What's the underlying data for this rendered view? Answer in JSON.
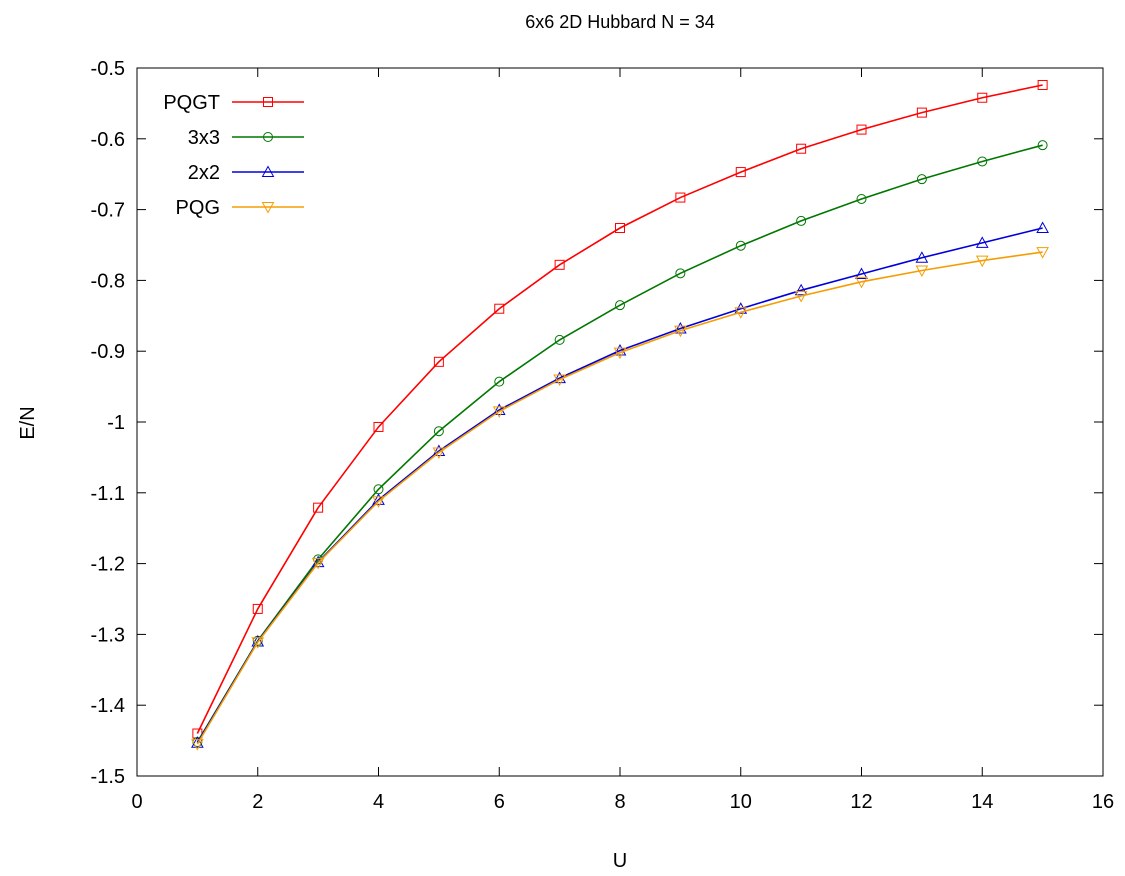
{
  "chart_data": {
    "type": "line",
    "title": "6x6 2D Hubbard N = 34",
    "xlabel": "U",
    "ylabel": "E/N",
    "xlim": [
      0,
      16
    ],
    "ylim": [
      -1.5,
      -0.5
    ],
    "xticks": [
      0,
      2,
      4,
      6,
      8,
      10,
      12,
      14,
      16
    ],
    "xtick_labels": [
      "0",
      "2",
      "4",
      "6",
      "8",
      "10",
      "12",
      "14",
      "16"
    ],
    "yticks": [
      -1.5,
      -1.4,
      -1.3,
      -1.2,
      -1.1,
      -1.0,
      -0.9,
      -0.8,
      -0.7,
      -0.6,
      -0.5
    ],
    "ytick_labels": [
      "-1.5",
      "-1.4",
      "-1.3",
      "-1.2",
      "-1.1",
      "-1",
      "-0.9",
      "-0.8",
      "-0.7",
      "-0.6",
      "-0.5"
    ],
    "grid": false,
    "legend_position": "top-left",
    "x": [
      1,
      2,
      3,
      4,
      5,
      6,
      7,
      8,
      9,
      10,
      11,
      12,
      13,
      14,
      15
    ],
    "series": [
      {
        "name": "PQGT",
        "color": "#ff0000",
        "marker": "square",
        "values": [
          -1.44,
          -1.264,
          -1.121,
          -1.007,
          -0.915,
          -0.84,
          -0.778,
          -0.726,
          -0.683,
          -0.647,
          -0.614,
          -0.587,
          -0.563,
          -0.542,
          -0.524
        ]
      },
      {
        "name": "3x3",
        "color": "#007700",
        "marker": "circle",
        "values": [
          -1.452,
          -1.309,
          -1.194,
          -1.095,
          -1.013,
          -0.943,
          -0.884,
          -0.835,
          -0.79,
          -0.751,
          -0.716,
          -0.685,
          -0.657,
          -0.632,
          -0.609
        ]
      },
      {
        "name": "2x2",
        "color": "#0000dd",
        "marker": "triangle-up",
        "values": [
          -1.453,
          -1.31,
          -1.198,
          -1.11,
          -1.041,
          -0.983,
          -0.938,
          -0.899,
          -0.868,
          -0.84,
          -0.814,
          -0.791,
          -0.768,
          -0.747,
          -0.726
        ]
      },
      {
        "name": "PQG",
        "color": "#f59d00",
        "marker": "triangle-down",
        "values": [
          -1.455,
          -1.311,
          -1.199,
          -1.112,
          -1.043,
          -0.985,
          -0.94,
          -0.902,
          -0.871,
          -0.845,
          -0.822,
          -0.802,
          -0.786,
          -0.772,
          -0.76
        ]
      }
    ]
  }
}
